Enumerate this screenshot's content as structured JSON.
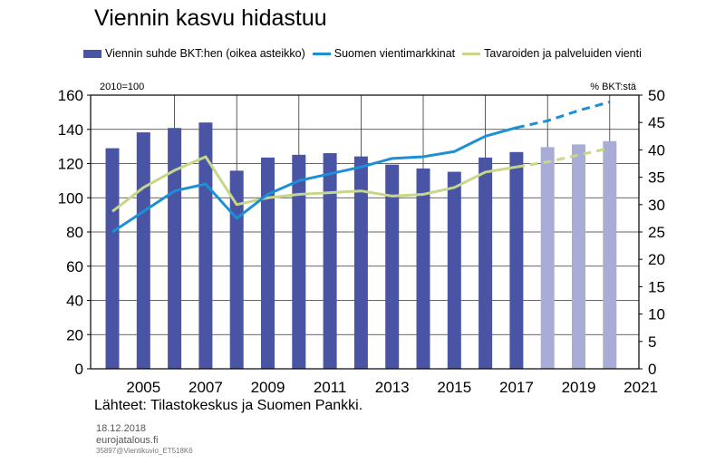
{
  "title": "Viennin kasvu hidastuu",
  "source": "Lähteet: Tilastokeskus ja Suomen Pankki.",
  "footer": {
    "date": "18.12.2018",
    "site": "eurojatalous.fi",
    "code": "35897@Vientikuvio_ET518K6"
  },
  "units": {
    "left": "2010=100",
    "right": "% BKT:stä"
  },
  "colors": {
    "bar": "#4a54a5",
    "bar_forecast": "#a8acd6",
    "line_markets": "#1c8fd6",
    "line_exports": "#c6d78a"
  },
  "chart_data": {
    "type": "bar+line",
    "x_ticks": [
      "2005",
      "2007",
      "2009",
      "2011",
      "2013",
      "2015",
      "2017",
      "2019",
      "2021"
    ],
    "years": [
      2004,
      2005,
      2006,
      2007,
      2008,
      2009,
      2010,
      2011,
      2012,
      2013,
      2014,
      2015,
      2016,
      2017,
      2018,
      2019,
      2020
    ],
    "forecast_from": 2018,
    "left_axis": {
      "min": 0,
      "max": 160,
      "ticks": [
        0,
        20,
        40,
        60,
        80,
        100,
        120,
        140,
        160
      ]
    },
    "right_axis": {
      "min": 0,
      "max": 50,
      "ticks": [
        0,
        5,
        10,
        15,
        20,
        25,
        30,
        35,
        40,
        45,
        50
      ]
    },
    "legend_position": "top",
    "grid": true,
    "series": [
      {
        "name": "Viennin suhde BKT:hen (oikea asteikko)",
        "kind": "bar",
        "axis": "right",
        "values": [
          40.3,
          43.2,
          44.0,
          45.0,
          36.2,
          38.6,
          39.1,
          39.4,
          38.8,
          37.3,
          36.6,
          36.0,
          38.6,
          39.6,
          40.5,
          41.0,
          41.6
        ]
      },
      {
        "name": "Suomen vientimarkkinat",
        "kind": "line",
        "axis": "left",
        "values": [
          80,
          92,
          104,
          108,
          88,
          102,
          110,
          114,
          118,
          123,
          124,
          127,
          136,
          141,
          145,
          151,
          156
        ]
      },
      {
        "name": "Tavaroiden ja palveluiden vienti",
        "kind": "line",
        "axis": "left",
        "values": [
          92,
          106,
          116,
          124,
          96,
          100,
          102,
          103,
          104,
          101,
          102,
          106,
          115,
          118,
          121,
          125,
          129
        ]
      }
    ]
  }
}
